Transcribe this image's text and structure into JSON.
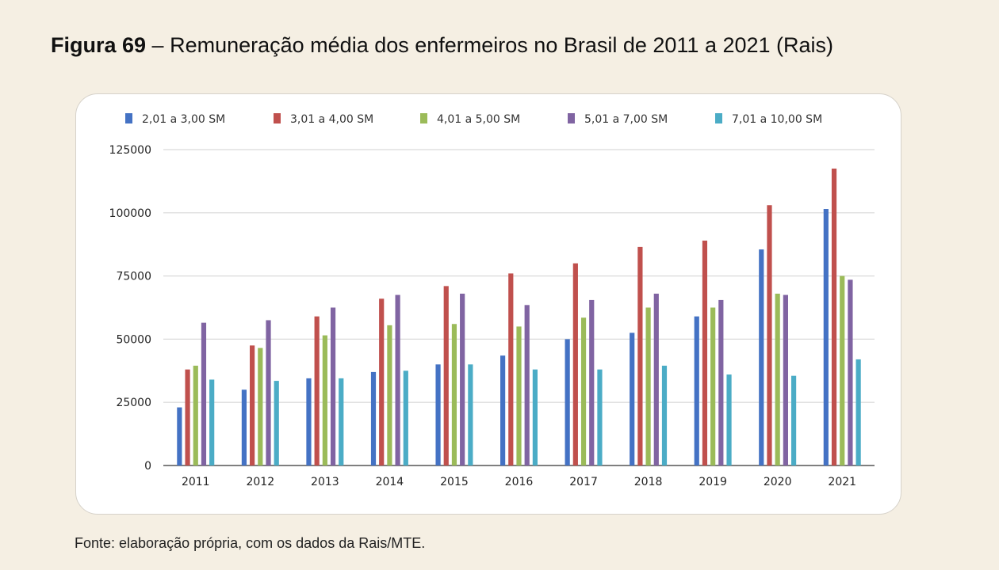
{
  "figure": {
    "label": "Figura 69",
    "separator": " – ",
    "caption": "Remuneração média dos enfermeiros no Brasil de 2011 a 2021 (Rais)"
  },
  "source": "Fonte: elaboração própria, com os dados da Rais/MTE.",
  "chart_data": {
    "type": "bar",
    "title": "Figura 69 – Remuneração média dos enfermeiros no Brasil de 2011 a 2021 (Rais)",
    "xlabel": "",
    "ylabel": "",
    "ylim": [
      0,
      125000
    ],
    "yticks": [
      0,
      25000,
      50000,
      75000,
      100000,
      125000
    ],
    "ytick_labels": [
      "0",
      "25000",
      "50000",
      "75000",
      "100000",
      "125000"
    ],
    "grid": true,
    "legend_position": "top",
    "categories": [
      "2011",
      "2012",
      "2013",
      "2014",
      "2015",
      "2016",
      "2017",
      "2018",
      "2019",
      "2020",
      "2021"
    ],
    "series": [
      {
        "name": "2,01 a 3,00 SM",
        "color": "#4472c4",
        "values": [
          23000,
          30000,
          34500,
          37000,
          40000,
          43500,
          50000,
          52500,
          59000,
          85500,
          101500
        ]
      },
      {
        "name": "3,01 a 4,00 SM",
        "color": "#c0504d",
        "values": [
          38000,
          47500,
          59000,
          66000,
          71000,
          76000,
          80000,
          86500,
          89000,
          103000,
          117500
        ]
      },
      {
        "name": "4,01 a 5,00 SM",
        "color": "#9bbb59",
        "values": [
          39500,
          46500,
          51500,
          55500,
          56000,
          55000,
          58500,
          62500,
          62500,
          68000,
          75000
        ]
      },
      {
        "name": "5,01 a 7,00 SM",
        "color": "#8064a2",
        "values": [
          56500,
          57500,
          62500,
          67500,
          68000,
          63500,
          65500,
          68000,
          65500,
          67500,
          73500
        ]
      },
      {
        "name": "7,01 a 10,00 SM",
        "color": "#4bacc6",
        "values": [
          34000,
          33500,
          34500,
          37500,
          40000,
          38000,
          38000,
          39500,
          36000,
          35500,
          42000
        ]
      }
    ]
  }
}
